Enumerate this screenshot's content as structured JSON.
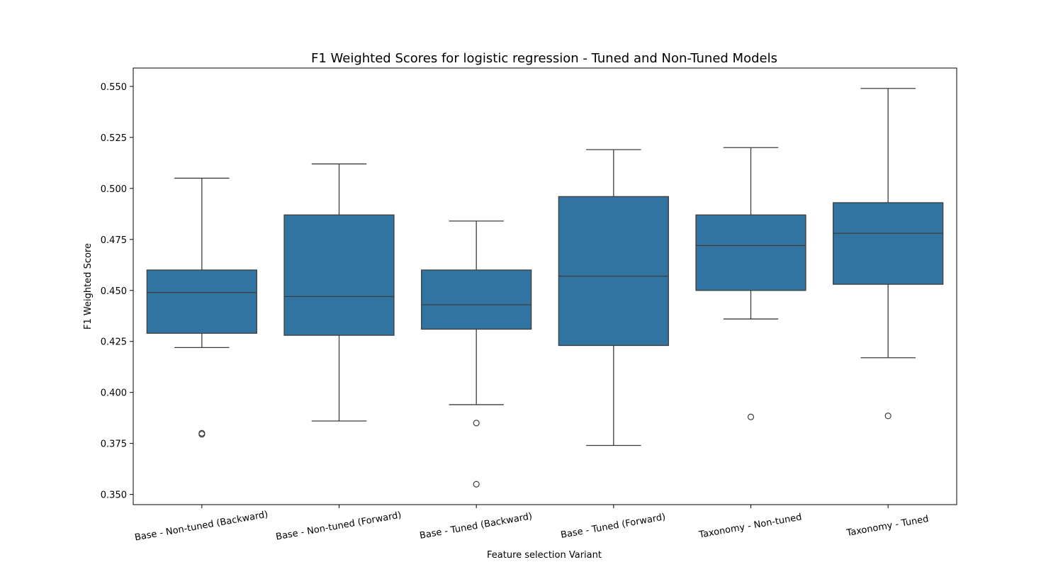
{
  "chart_data": {
    "type": "box",
    "title": "F1 Weighted Scores for logistic regression - Tuned and Non-Tuned Models",
    "xlabel": "Feature selection Variant",
    "ylabel": "F1 Weighted Score",
    "ylim": [
      0.345,
      0.559
    ],
    "yticks": [
      "0.350",
      "0.375",
      "0.400",
      "0.425",
      "0.450",
      "0.475",
      "0.500",
      "0.525",
      "0.550"
    ],
    "grid": false,
    "box_color": "#3274a1",
    "line_color": "#3d3d3d",
    "categories": [
      "Base - Non-tuned (Backward)",
      "Base - Non-tuned (Forward)",
      "Base - Tuned (Backward)",
      "Base - Tuned (Forward)",
      "Taxonomy - Non-tuned",
      "Taxonomy - Tuned"
    ],
    "boxes": [
      {
        "whisker_low": 0.422,
        "q1": 0.429,
        "median": 0.449,
        "q3": 0.46,
        "whisker_high": 0.505,
        "outliers": [
          0.38,
          0.3795
        ]
      },
      {
        "whisker_low": 0.386,
        "q1": 0.428,
        "median": 0.447,
        "q3": 0.487,
        "whisker_high": 0.512,
        "outliers": []
      },
      {
        "whisker_low": 0.394,
        "q1": 0.431,
        "median": 0.443,
        "q3": 0.46,
        "whisker_high": 0.484,
        "outliers": [
          0.385,
          0.355
        ]
      },
      {
        "whisker_low": 0.374,
        "q1": 0.423,
        "median": 0.457,
        "q3": 0.496,
        "whisker_high": 0.519,
        "outliers": []
      },
      {
        "whisker_low": 0.436,
        "q1": 0.45,
        "median": 0.472,
        "q3": 0.487,
        "whisker_high": 0.52,
        "outliers": [
          0.388
        ]
      },
      {
        "whisker_low": 0.417,
        "q1": 0.453,
        "median": 0.478,
        "q3": 0.493,
        "whisker_high": 0.549,
        "outliers": [
          0.3885
        ]
      }
    ]
  }
}
